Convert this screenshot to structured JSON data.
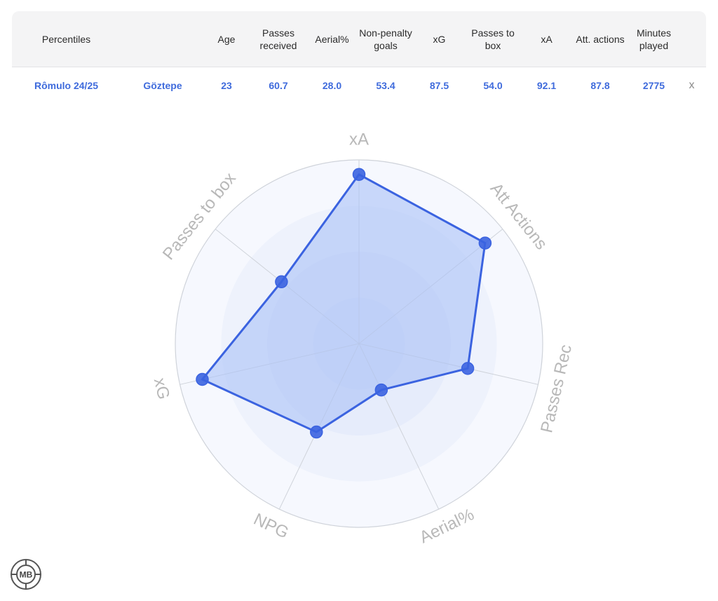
{
  "table": {
    "headers": [
      "Percentiles",
      "",
      "Age",
      "Passes received",
      "Aerial%",
      "Non-penalty goals",
      "xG",
      "Passes to box",
      "xA",
      "Att. actions",
      "Minutes played",
      ""
    ],
    "row": [
      "Rômulo 24/25",
      "Göztepe",
      "23",
      "60.7",
      "28.0",
      "53.4",
      "87.5",
      "54.0",
      "92.1",
      "87.8",
      "2775"
    ],
    "remove_label": "x"
  },
  "chart_data": {
    "type": "radar",
    "axes": [
      "xA",
      "Att Actions",
      "Passes Rec",
      "Aerial%",
      "NPG",
      "xG",
      "Passes to box"
    ],
    "series": [
      {
        "values": [
          92.1,
          87.8,
          60.7,
          28.0,
          53.4,
          87.5,
          54.0
        ]
      }
    ],
    "range": [
      0,
      100
    ],
    "rings": 4,
    "colors": {
      "line": "#3b63e0",
      "fill": "#aac1f7",
      "point": "#3b63e0",
      "grid": "#cfd3da",
      "axis_label": "#b8b8b8"
    }
  },
  "logo": {
    "text": "MB"
  }
}
